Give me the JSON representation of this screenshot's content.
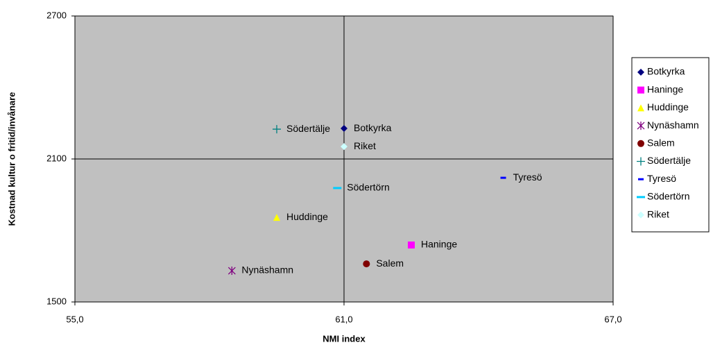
{
  "chart_data": {
    "type": "scatter",
    "x_label": "NMI index",
    "y_label": "Kostnad kultur o fritid/invånare",
    "xlim": [
      55,
      67
    ],
    "xticks": [
      {
        "value": 55,
        "label": "55,0"
      },
      {
        "value": 61,
        "label": "61,0"
      },
      {
        "value": 67,
        "label": "67,0"
      }
    ],
    "ylim": [
      1500,
      2700
    ],
    "yticks": [
      1500,
      2100,
      2700
    ],
    "grid": true,
    "legend": "right",
    "plot_bg": "#c0c0c0",
    "series": [
      {
        "name": "Botkyrka",
        "color": "#000080",
        "marker": "diamond",
        "x": [
          61.0
        ],
        "values": [
          2228
        ]
      },
      {
        "name": "Haninge",
        "color": "#ff00ff",
        "marker": "square",
        "x": [
          62.5
        ],
        "values": [
          1739
        ]
      },
      {
        "name": "Huddinge",
        "color": "#ffff00",
        "marker": "triangle",
        "x": [
          59.5
        ],
        "values": [
          1855
        ]
      },
      {
        "name": "Nynäshamn",
        "color": "#800080",
        "marker": "asterisk",
        "x": [
          58.5
        ],
        "values": [
          1631
        ]
      },
      {
        "name": "Salem",
        "color": "#800000",
        "marker": "circle",
        "x": [
          61.5
        ],
        "values": [
          1660
        ]
      },
      {
        "name": "Södertälje",
        "color": "#008080",
        "marker": "plus",
        "x": [
          59.5
        ],
        "values": [
          2225
        ]
      },
      {
        "name": "Tyresö",
        "color": "#0000ff",
        "marker": "dash",
        "x": [
          64.55
        ],
        "values": [
          2021
        ]
      },
      {
        "name": "Södertörn",
        "color": "#00ccff",
        "marker": "longdash",
        "x": [
          60.85
        ],
        "values": [
          1978
        ]
      },
      {
        "name": "Riket",
        "color": "#ccffff",
        "marker": "diamond",
        "x": [
          61.0
        ],
        "values": [
          2152
        ]
      }
    ]
  }
}
